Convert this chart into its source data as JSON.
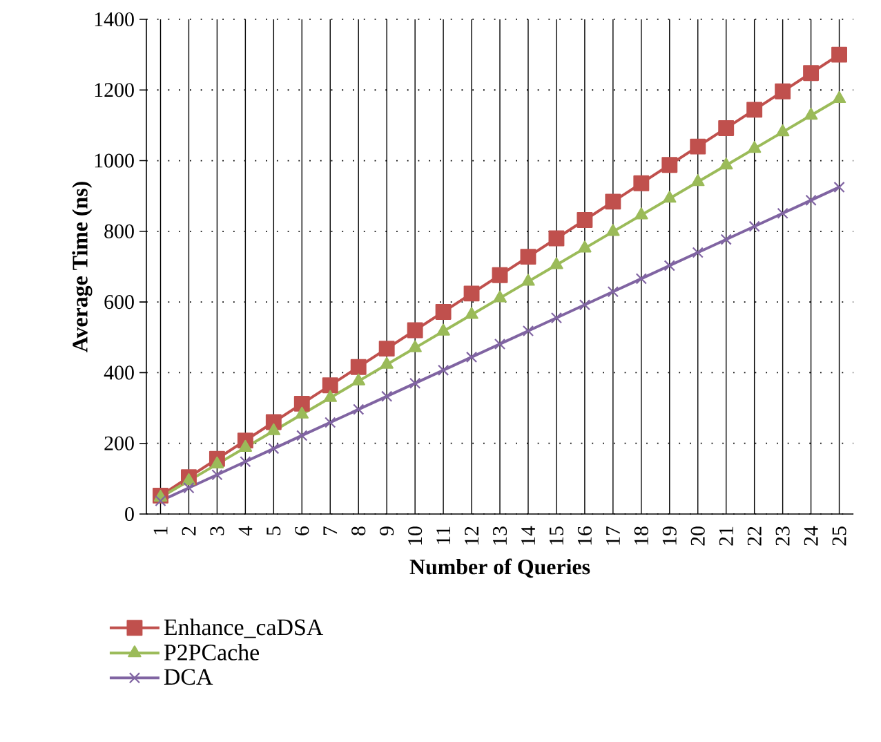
{
  "chart_data": {
    "type": "line",
    "xlabel": "Number of Queries",
    "ylabel": "Average Time (ns)",
    "categories": [
      "1",
      "2",
      "3",
      "4",
      "5",
      "6",
      "7",
      "8",
      "9",
      "10",
      "11",
      "12",
      "13",
      "14",
      "15",
      "16",
      "17",
      "18",
      "19",
      "20",
      "21",
      "22",
      "23",
      "24",
      "25"
    ],
    "series": [
      {
        "name": "Enhance_caDSA",
        "color": "#c0504d",
        "marker": "square",
        "values": [
          52,
          104,
          156,
          208,
          260,
          312,
          364,
          416,
          468,
          520,
          572,
          624,
          676,
          728,
          780,
          832,
          884,
          936,
          988,
          1040,
          1092,
          1144,
          1196,
          1248,
          1300
        ]
      },
      {
        "name": "P2PCache",
        "color": "#9bbb59",
        "marker": "triangle",
        "values": [
          47,
          94,
          141,
          188,
          235,
          282,
          329,
          376,
          423,
          470,
          517,
          564,
          611,
          658,
          705,
          752,
          799,
          846,
          893,
          940,
          987,
          1034,
          1081,
          1128,
          1175
        ]
      },
      {
        "name": "DCA",
        "color": "#8064a2",
        "marker": "cross",
        "values": [
          37,
          74,
          111,
          148,
          185,
          222,
          259,
          296,
          333,
          370,
          407,
          444,
          481,
          518,
          555,
          592,
          629,
          666,
          703,
          740,
          777,
          814,
          851,
          888,
          925
        ]
      }
    ],
    "ylim": [
      0,
      1400
    ],
    "yticks": [
      0,
      200,
      400,
      600,
      800,
      1000,
      1200,
      1400
    ],
    "grid": true,
    "legend": "bottom left",
    "line_style": "solid"
  }
}
